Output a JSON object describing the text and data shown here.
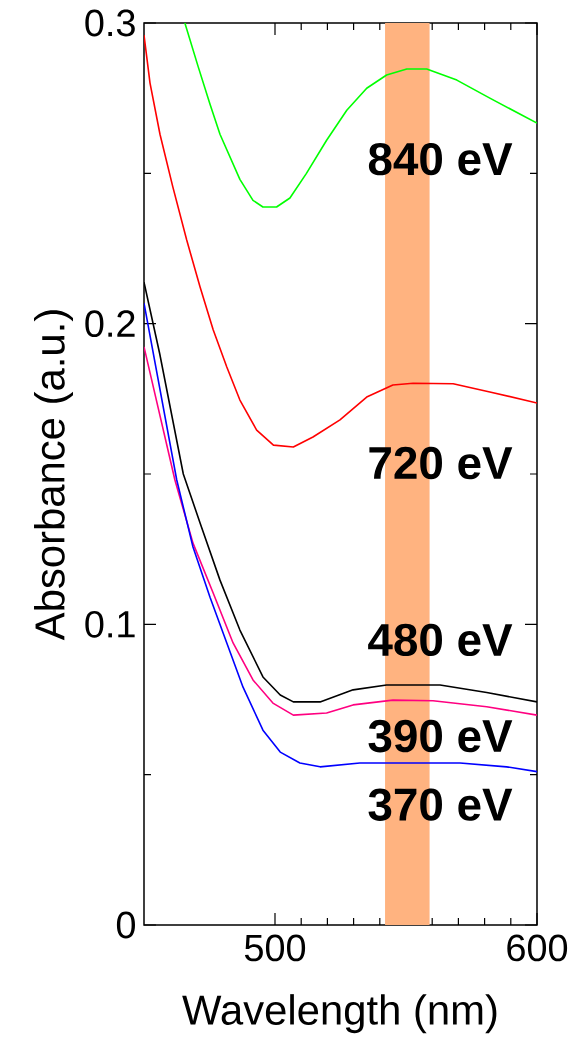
{
  "chart_data": {
    "type": "line",
    "xlabel": "Wavelength (nm)",
    "ylabel": "Absorbance (a.u.)",
    "xlim": [
      450,
      600
    ],
    "ylim": [
      0,
      0.3
    ],
    "xticks": [
      500,
      600
    ],
    "yticks": [
      0,
      0.1,
      0.2,
      0.3
    ],
    "grid": false,
    "marker": "none",
    "line_style": "solid",
    "annotations": [
      "840 eV",
      "720 eV",
      "480 eV",
      "390 eV",
      "370 eV"
    ],
    "bands": [
      {
        "axis": "x",
        "from": 542,
        "to": 559,
        "color": "#ffb380"
      }
    ],
    "series": [
      {
        "color": "#00ff00",
        "x": [
          465.6,
          470.7,
          475.2,
          479,
          486.6,
          491.6,
          495.4,
          500.6,
          505.7,
          512,
          519.7,
          527.4,
          535,
          542.6,
          550.3,
          557.9,
          569.4,
          582,
          600
        ],
        "values": [
          0.3,
          0.2854,
          0.273,
          0.263,
          0.248,
          0.241,
          0.2388,
          0.2388,
          0.2418,
          0.25,
          0.261,
          0.271,
          0.2783,
          0.2827,
          0.2847,
          0.2847,
          0.281,
          0.275,
          0.2667
        ]
      },
      {
        "color": "#ff0000",
        "x": [
          450,
          452.3,
          456.1,
          461,
          466.3,
          471.4,
          476.4,
          481.6,
          486.6,
          493,
          499.4,
          507,
          514.5,
          524.8,
          535,
          545,
          552.7,
          568,
          582,
          600
        ],
        "values": [
          0.296,
          0.28,
          0.263,
          0.2455,
          0.2278,
          0.2122,
          0.198,
          0.1856,
          0.1746,
          0.1646,
          0.1596,
          0.159,
          0.1623,
          0.168,
          0.1756,
          0.1796,
          0.1802,
          0.18,
          0.1773,
          0.1736
        ]
      },
      {
        "color": "#000000",
        "x": [
          450,
          456,
          465,
          471.4,
          479,
          486.6,
          495.4,
          502,
          507,
          517.2,
          529.8,
          542.6,
          563,
          580.8,
          600
        ],
        "values": [
          0.2138,
          0.19,
          0.15,
          0.1337,
          0.1147,
          0.0981,
          0.0825,
          0.0765,
          0.0742,
          0.0742,
          0.0782,
          0.0798,
          0.0798,
          0.0773,
          0.0742
        ]
      },
      {
        "color": "#ff0080",
        "x": [
          450,
          461.8,
          468.7,
          476.4,
          484,
          491.6,
          499.2,
          507,
          519.7,
          529.8,
          545,
          560.3,
          580.8,
          600
        ],
        "values": [
          0.1923,
          0.148,
          0.127,
          0.1104,
          0.0938,
          0.0815,
          0.0738,
          0.0698,
          0.0705,
          0.0732,
          0.0748,
          0.0746,
          0.0726,
          0.0698
        ]
      },
      {
        "color": "#0000ff",
        "x": [
          450,
          462.5,
          468.7,
          475.2,
          481.6,
          487.8,
          495.4,
          502,
          509.5,
          517.2,
          532.4,
          570.6,
          588.4,
          600
        ],
        "values": [
          0.2068,
          0.148,
          0.1257,
          0.109,
          0.0938,
          0.0791,
          0.0648,
          0.0575,
          0.0539,
          0.0526,
          0.0539,
          0.0539,
          0.0526,
          0.051
        ]
      }
    ]
  }
}
